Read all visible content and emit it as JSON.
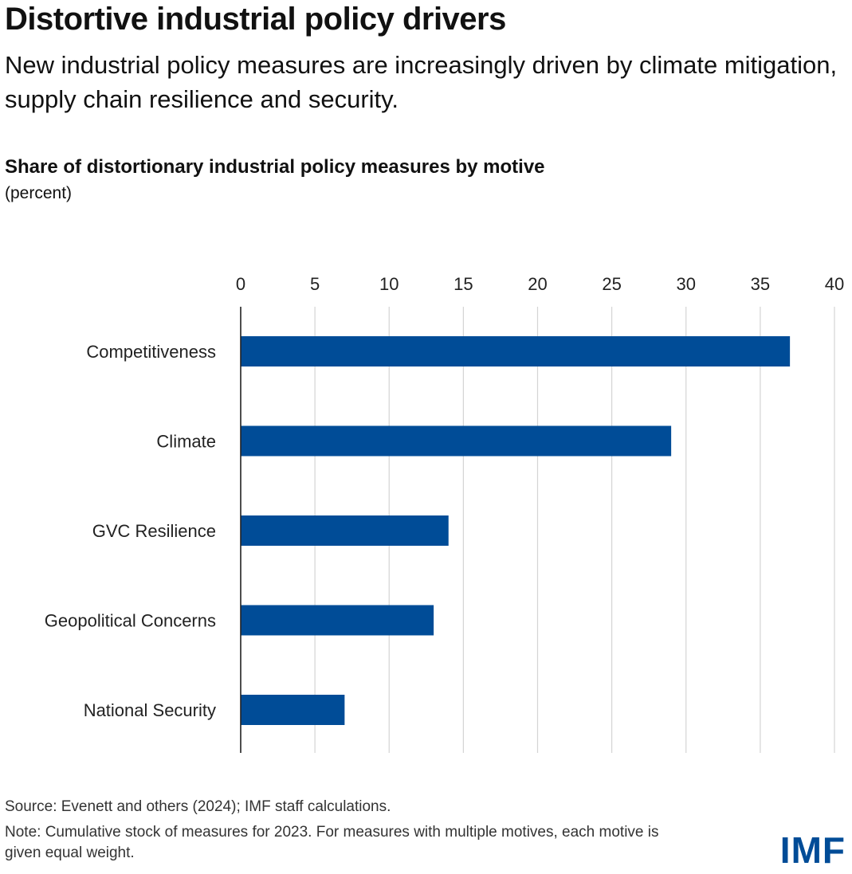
{
  "header": {
    "title": "Distortive industrial policy drivers",
    "subtitle": "New industrial policy measures are increasingly driven by climate mitigation, supply chain resilience and security."
  },
  "chart_data": {
    "type": "bar",
    "orientation": "horizontal",
    "title": "Share of distortionary industrial policy measures by motive",
    "unit": "(percent)",
    "categories": [
      "Competitiveness",
      "Climate",
      "GVC Resilience",
      "Geopolitical Concerns",
      "National Security"
    ],
    "values": [
      37,
      29,
      14,
      13,
      7
    ],
    "xlim": [
      0,
      40
    ],
    "xticks": [
      0,
      5,
      10,
      15,
      20,
      25,
      30,
      35,
      40
    ],
    "xaxis_position": "top",
    "grid": true,
    "bar_color": "#004c97"
  },
  "footer": {
    "source": "Source: Evenett and others (2024); IMF staff calculations.",
    "note": "Note: Cumulative stock of measures for 2023. For measures with multiple motives, each motive is given equal weight."
  },
  "brand": {
    "logo_text": "IMF",
    "color": "#004c97"
  }
}
